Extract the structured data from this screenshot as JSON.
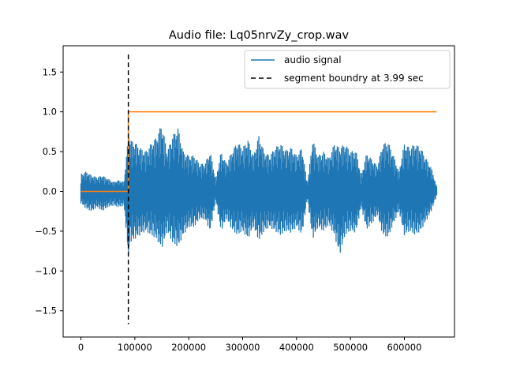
{
  "chart_data": {
    "type": "line",
    "title": "Audio file: Lq05nrvZy_crop.wav",
    "xlabel": "",
    "ylabel": "",
    "xlim": [
      -33000,
      693000
    ],
    "ylim": [
      -1.83,
      1.83
    ],
    "x_ticks": [
      0,
      100000,
      200000,
      300000,
      400000,
      500000,
      600000
    ],
    "x_tick_labels": [
      "0",
      "100000",
      "200000",
      "300000",
      "400000",
      "500000",
      "600000"
    ],
    "y_ticks": [
      -1.5,
      -1.0,
      -0.5,
      0.0,
      0.5,
      1.0,
      1.5
    ],
    "y_tick_labels": [
      "−1.5",
      "−1.0",
      "−0.5",
      "0.0",
      "0.5",
      "1.0",
      "1.5"
    ],
    "grid": false,
    "legend_position": "top-right",
    "legend": [
      {
        "label": "audio signal",
        "color": "#1f77b4",
        "style": "solid"
      },
      {
        "label": "segment boundry at 3.99 sec",
        "color": "#000000",
        "style": "dashed"
      }
    ],
    "series": [
      {
        "name": "audio signal",
        "color": "#1f77b4",
        "x": [
          0,
          10000,
          20000,
          30000,
          40000,
          50000,
          60000,
          70000,
          80000,
          88000,
          90000,
          100000,
          110000,
          120000,
          130000,
          140000,
          150000,
          160000,
          170000,
          180000,
          190000,
          200000,
          210000,
          220000,
          230000,
          240000,
          250000,
          260000,
          270000,
          280000,
          290000,
          300000,
          310000,
          320000,
          330000,
          340000,
          350000,
          360000,
          370000,
          380000,
          390000,
          400000,
          410000,
          420000,
          430000,
          440000,
          450000,
          460000,
          470000,
          480000,
          490000,
          500000,
          510000,
          520000,
          530000,
          540000,
          550000,
          560000,
          570000,
          580000,
          590000,
          600000,
          610000,
          620000,
          630000,
          640000,
          650000,
          660000
        ],
        "upper": [
          0.22,
          0.25,
          0.2,
          0.18,
          0.2,
          0.16,
          0.12,
          0.14,
          0.12,
          0.7,
          0.65,
          0.62,
          0.55,
          0.5,
          0.6,
          0.68,
          0.85,
          0.5,
          0.7,
          0.8,
          0.5,
          0.45,
          0.45,
          0.35,
          0.35,
          0.5,
          0.15,
          0.5,
          0.35,
          0.5,
          0.62,
          0.55,
          0.65,
          0.45,
          0.7,
          0.5,
          0.45,
          0.55,
          0.6,
          0.52,
          0.55,
          0.45,
          0.55,
          0.1,
          0.65,
          0.45,
          0.5,
          0.42,
          0.6,
          0.55,
          0.6,
          0.5,
          0.52,
          0.2,
          0.48,
          0.4,
          0.32,
          0.6,
          0.62,
          0.45,
          0.25,
          0.6,
          0.55,
          0.6,
          0.55,
          0.42,
          0.3,
          0.06
        ],
        "lower": [
          -0.15,
          -0.22,
          -0.25,
          -0.2,
          -0.25,
          -0.2,
          -0.18,
          -0.2,
          -0.18,
          -0.8,
          -0.65,
          -0.6,
          -0.55,
          -0.5,
          -0.55,
          -0.6,
          -0.72,
          -0.5,
          -0.65,
          -0.7,
          -0.55,
          -0.45,
          -0.45,
          -0.35,
          -0.35,
          -0.5,
          -0.12,
          -0.5,
          -0.35,
          -0.48,
          -0.55,
          -0.5,
          -0.6,
          -0.45,
          -0.62,
          -0.5,
          -0.45,
          -0.5,
          -0.55,
          -0.5,
          -0.52,
          -0.45,
          -0.55,
          -0.1,
          -0.6,
          -0.45,
          -0.5,
          -0.42,
          -0.55,
          -0.8,
          -0.55,
          -0.5,
          -0.52,
          -0.2,
          -0.48,
          -0.4,
          -0.3,
          -0.55,
          -0.58,
          -0.4,
          -0.25,
          -0.55,
          -0.5,
          -0.55,
          -0.5,
          -0.38,
          -0.25,
          -0.05
        ]
      },
      {
        "name": "",
        "color": "#ff7f0e",
        "x": [
          0,
          88000,
          88000,
          660000
        ],
        "y": [
          0,
          0,
          1,
          1
        ]
      }
    ],
    "boundary": {
      "x": 88000,
      "y_range": [
        -1.67,
        1.72
      ],
      "color": "#000000"
    }
  }
}
